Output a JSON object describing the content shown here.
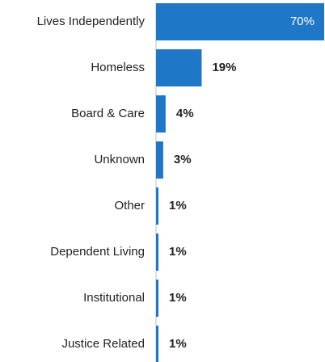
{
  "chart_data": {
    "type": "bar",
    "orientation": "horizontal",
    "title": "",
    "xlabel": "",
    "ylabel": "",
    "xlim": [
      0,
      70
    ],
    "grid": false,
    "legend": "none",
    "bar_color": "#1f77c8",
    "inside_label_color": "#ffffff",
    "outside_label_color": "#222222",
    "category_label_color": "#222222",
    "axis_color": "#bfbfbf",
    "categories": [
      "Lives Independently",
      "Homeless",
      "Board & Care",
      "Unknown",
      "Other",
      "Dependent Living",
      "Institutional",
      "Justice Related"
    ],
    "values": [
      70,
      19,
      4,
      3,
      1,
      1,
      1,
      1
    ],
    "value_labels": [
      "70%",
      "19%",
      "4%",
      "3%",
      "1%",
      "1%",
      "1%",
      "1%"
    ]
  }
}
